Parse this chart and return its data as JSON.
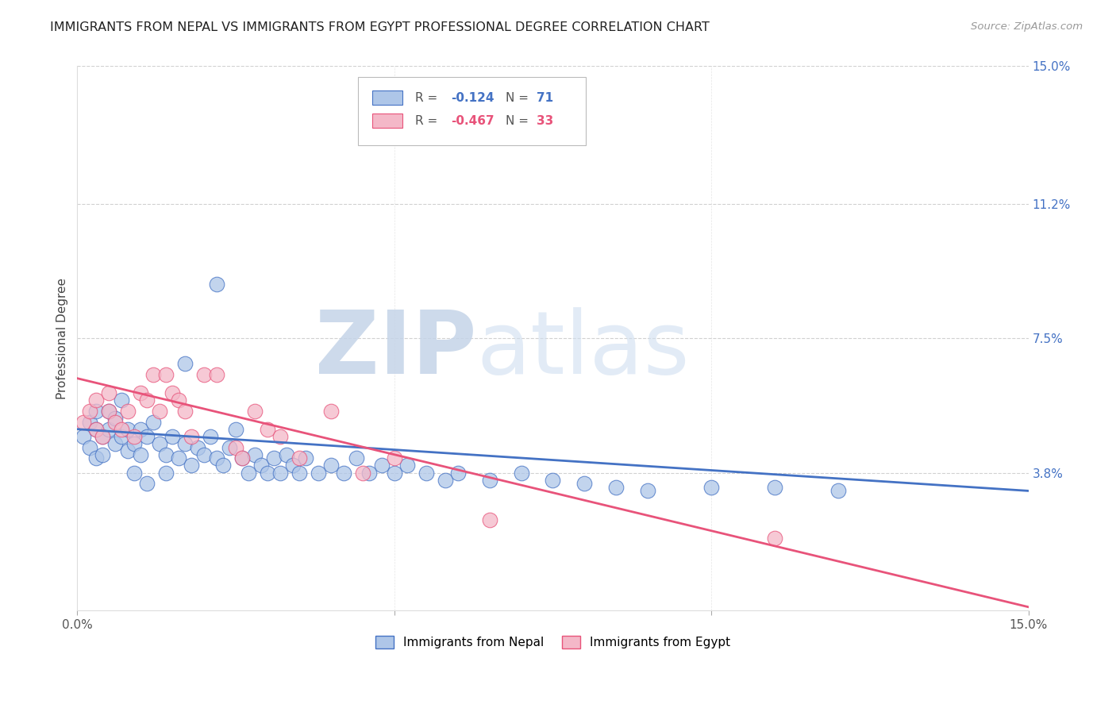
{
  "title": "IMMIGRANTS FROM NEPAL VS IMMIGRANTS FROM EGYPT PROFESSIONAL DEGREE CORRELATION CHART",
  "source": "Source: ZipAtlas.com",
  "ylabel": "Professional Degree",
  "xlim": [
    0.0,
    0.15
  ],
  "ylim": [
    0.0,
    0.15
  ],
  "ytick_labels_right": [
    "15.0%",
    "11.2%",
    "7.5%",
    "3.8%"
  ],
  "ytick_values_right": [
    0.15,
    0.112,
    0.075,
    0.038
  ],
  "nepal_R": -0.124,
  "nepal_N": 71,
  "egypt_R": -0.467,
  "egypt_N": 33,
  "nepal_color": "#aec6e8",
  "egypt_color": "#f4b8c8",
  "nepal_line_color": "#4472c4",
  "egypt_line_color": "#e8537a",
  "watermark_zip": "ZIP",
  "watermark_atlas": "atlas",
  "background_color": "#ffffff",
  "nepal_scatter": [
    [
      0.001,
      0.048
    ],
    [
      0.002,
      0.052
    ],
    [
      0.002,
      0.045
    ],
    [
      0.003,
      0.05
    ],
    [
      0.003,
      0.055
    ],
    [
      0.003,
      0.042
    ],
    [
      0.004,
      0.048
    ],
    [
      0.004,
      0.043
    ],
    [
      0.005,
      0.05
    ],
    [
      0.005,
      0.055
    ],
    [
      0.006,
      0.046
    ],
    [
      0.006,
      0.053
    ],
    [
      0.007,
      0.048
    ],
    [
      0.007,
      0.058
    ],
    [
      0.008,
      0.044
    ],
    [
      0.008,
      0.05
    ],
    [
      0.009,
      0.046
    ],
    [
      0.009,
      0.038
    ],
    [
      0.01,
      0.05
    ],
    [
      0.01,
      0.043
    ],
    [
      0.011,
      0.048
    ],
    [
      0.011,
      0.035
    ],
    [
      0.012,
      0.052
    ],
    [
      0.013,
      0.046
    ],
    [
      0.014,
      0.043
    ],
    [
      0.014,
      0.038
    ],
    [
      0.015,
      0.048
    ],
    [
      0.016,
      0.042
    ],
    [
      0.017,
      0.046
    ],
    [
      0.018,
      0.04
    ],
    [
      0.019,
      0.045
    ],
    [
      0.02,
      0.043
    ],
    [
      0.021,
      0.048
    ],
    [
      0.022,
      0.042
    ],
    [
      0.023,
      0.04
    ],
    [
      0.024,
      0.045
    ],
    [
      0.025,
      0.05
    ],
    [
      0.026,
      0.042
    ],
    [
      0.027,
      0.038
    ],
    [
      0.028,
      0.043
    ],
    [
      0.029,
      0.04
    ],
    [
      0.03,
      0.038
    ],
    [
      0.031,
      0.042
    ],
    [
      0.032,
      0.038
    ],
    [
      0.033,
      0.043
    ],
    [
      0.034,
      0.04
    ],
    [
      0.035,
      0.038
    ],
    [
      0.036,
      0.042
    ],
    [
      0.038,
      0.038
    ],
    [
      0.04,
      0.04
    ],
    [
      0.042,
      0.038
    ],
    [
      0.044,
      0.042
    ],
    [
      0.046,
      0.038
    ],
    [
      0.048,
      0.04
    ],
    [
      0.05,
      0.038
    ],
    [
      0.052,
      0.04
    ],
    [
      0.055,
      0.038
    ],
    [
      0.058,
      0.036
    ],
    [
      0.06,
      0.038
    ],
    [
      0.065,
      0.036
    ],
    [
      0.07,
      0.038
    ],
    [
      0.075,
      0.036
    ],
    [
      0.08,
      0.035
    ],
    [
      0.085,
      0.034
    ],
    [
      0.09,
      0.033
    ],
    [
      0.1,
      0.034
    ],
    [
      0.11,
      0.034
    ],
    [
      0.12,
      0.033
    ],
    [
      0.048,
      0.135
    ],
    [
      0.022,
      0.09
    ],
    [
      0.017,
      0.068
    ]
  ],
  "egypt_scatter": [
    [
      0.001,
      0.052
    ],
    [
      0.002,
      0.055
    ],
    [
      0.003,
      0.05
    ],
    [
      0.003,
      0.058
    ],
    [
      0.004,
      0.048
    ],
    [
      0.005,
      0.055
    ],
    [
      0.005,
      0.06
    ],
    [
      0.006,
      0.052
    ],
    [
      0.007,
      0.05
    ],
    [
      0.008,
      0.055
    ],
    [
      0.009,
      0.048
    ],
    [
      0.01,
      0.06
    ],
    [
      0.011,
      0.058
    ],
    [
      0.012,
      0.065
    ],
    [
      0.013,
      0.055
    ],
    [
      0.014,
      0.065
    ],
    [
      0.015,
      0.06
    ],
    [
      0.016,
      0.058
    ],
    [
      0.017,
      0.055
    ],
    [
      0.018,
      0.048
    ],
    [
      0.02,
      0.065
    ],
    [
      0.022,
      0.065
    ],
    [
      0.025,
      0.045
    ],
    [
      0.026,
      0.042
    ],
    [
      0.028,
      0.055
    ],
    [
      0.03,
      0.05
    ],
    [
      0.032,
      0.048
    ],
    [
      0.035,
      0.042
    ],
    [
      0.04,
      0.055
    ],
    [
      0.045,
      0.038
    ],
    [
      0.05,
      0.042
    ],
    [
      0.065,
      0.025
    ],
    [
      0.11,
      0.02
    ]
  ]
}
